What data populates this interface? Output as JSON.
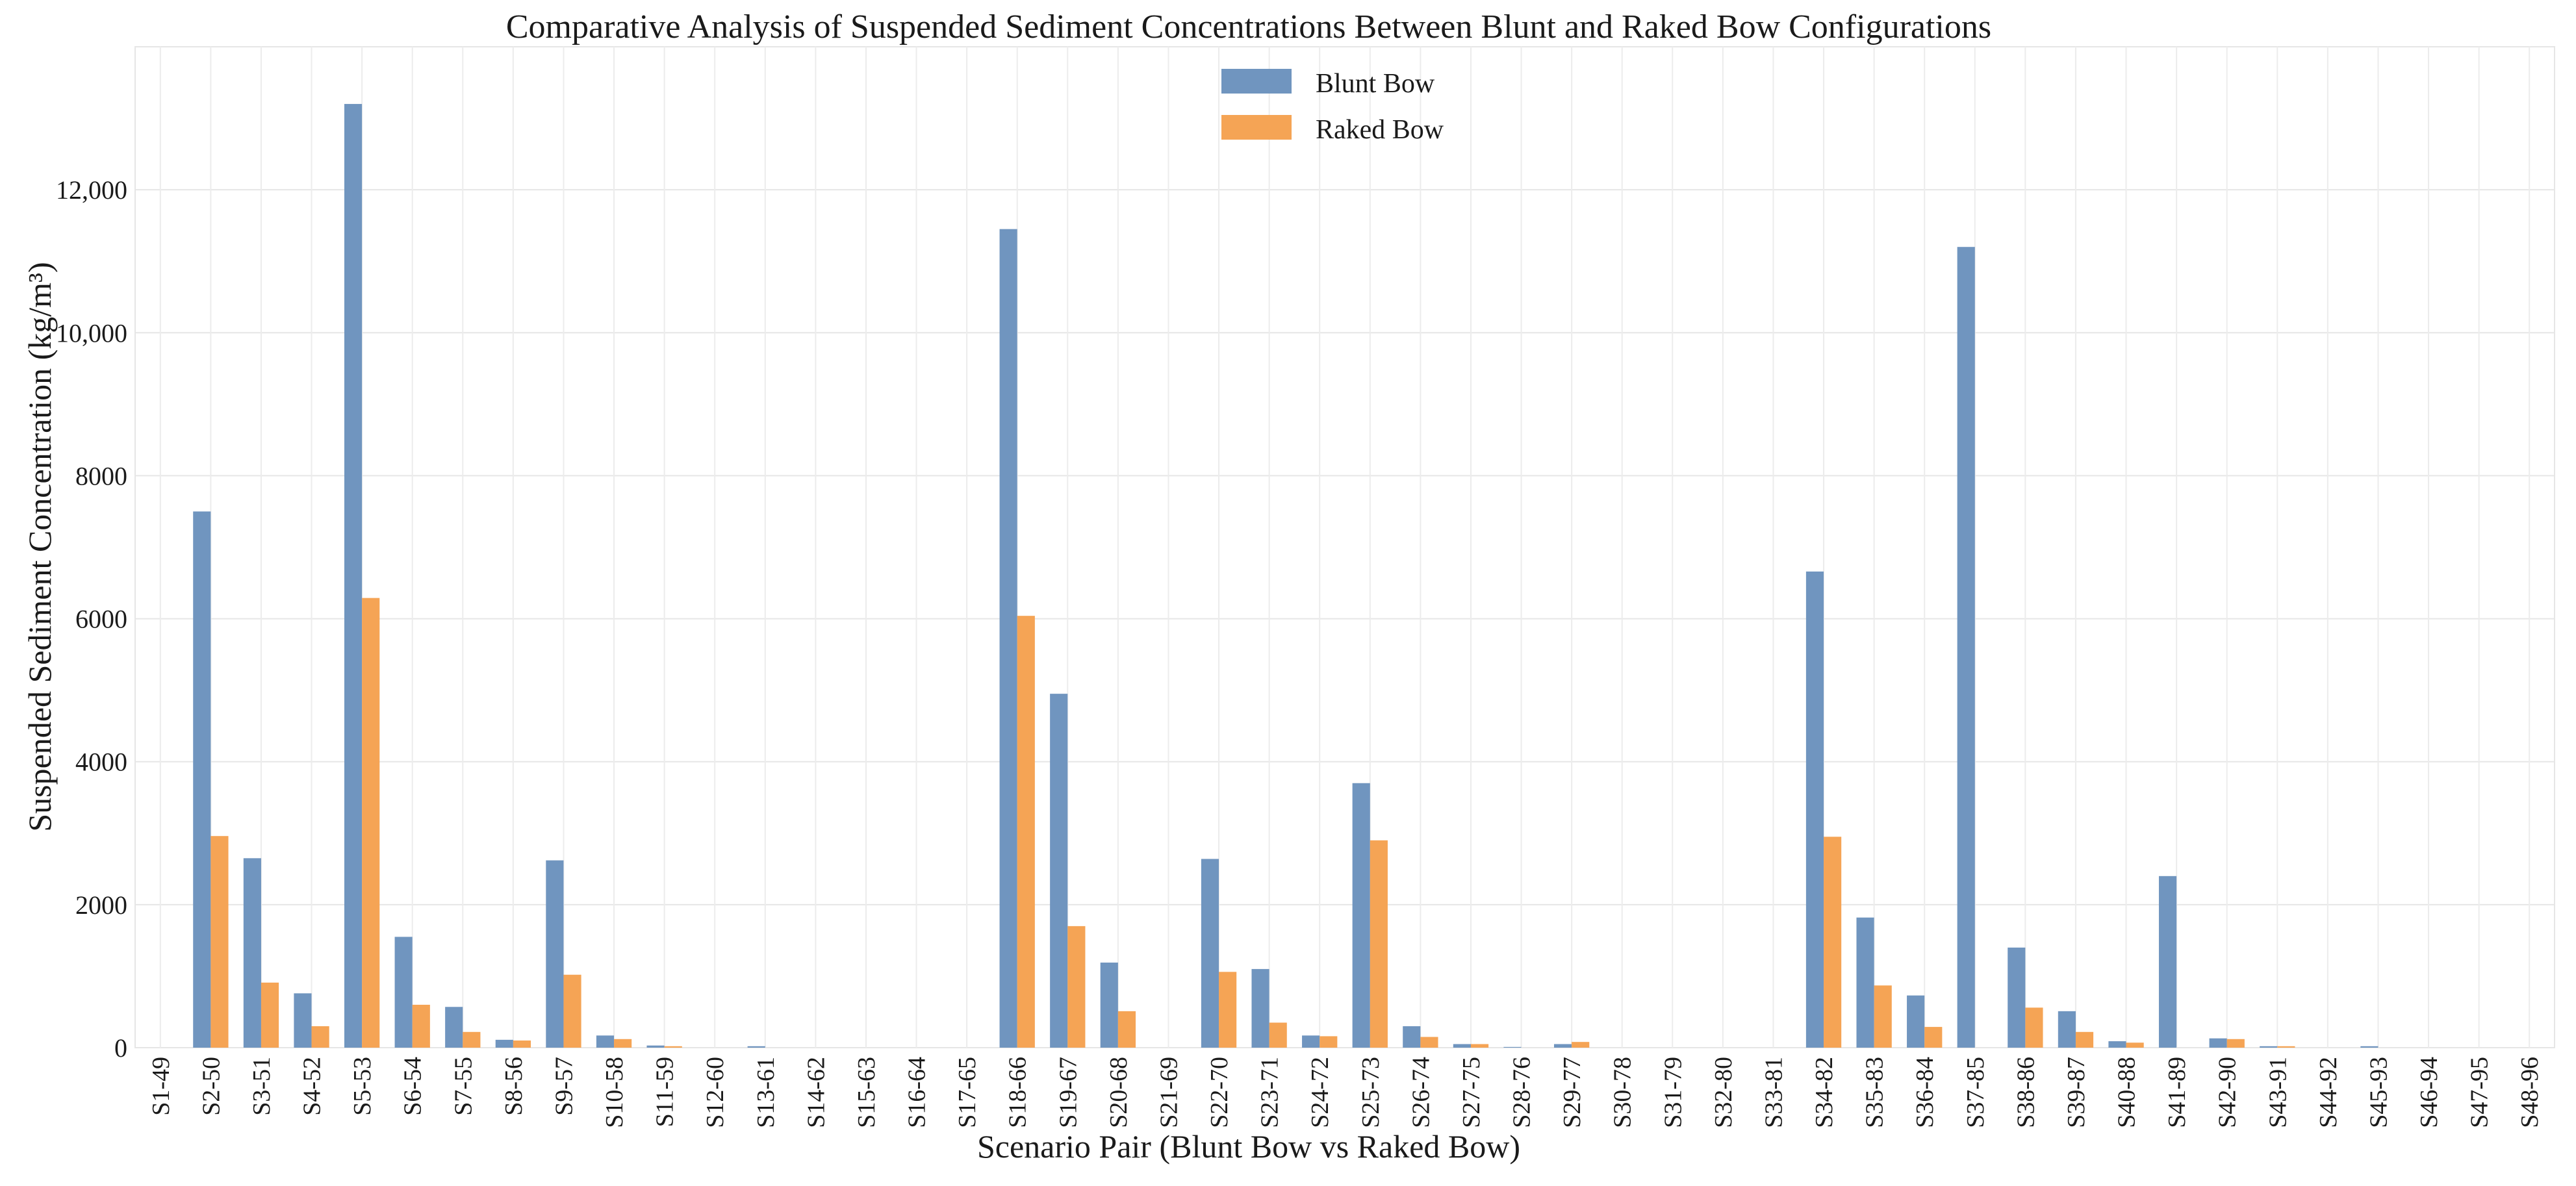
{
  "chart_data": {
    "type": "bar",
    "title": "Comparative Analysis of Suspended Sediment Concentrations Between Blunt and Raked Bow Configurations",
    "xlabel": "Scenario Pair (Blunt Bow vs Raked Bow)",
    "ylabel": "Suspended Sediment Concentration (kg/m³)",
    "ylim": [
      0,
      14000
    ],
    "yticks": [
      0,
      2000,
      4000,
      6000,
      8000,
      10000,
      12000
    ],
    "ytick_labels": [
      "0",
      "2000",
      "4000",
      "6000",
      "8000",
      "10,000",
      "12,000"
    ],
    "grid": true,
    "legend_position": "top-center",
    "categories": [
      "S1-49",
      "S2-50",
      "S3-51",
      "S4-52",
      "S5-53",
      "S6-54",
      "S7-55",
      "S8-56",
      "S9-57",
      "S10-58",
      "S11-59",
      "S12-60",
      "S13-61",
      "S14-62",
      "S15-63",
      "S16-64",
      "S17-65",
      "S18-66",
      "S19-67",
      "S20-68",
      "S21-69",
      "S22-70",
      "S23-71",
      "S24-72",
      "S25-73",
      "S26-74",
      "S27-75",
      "S28-76",
      "S29-77",
      "S30-78",
      "S31-79",
      "S32-80",
      "S33-81",
      "S34-82",
      "S35-83",
      "S36-84",
      "S37-85",
      "S38-86",
      "S39-87",
      "S40-88",
      "S41-89",
      "S42-90",
      "S43-91",
      "S44-92",
      "S45-93",
      "S46-94",
      "S47-95",
      "S48-96"
    ],
    "series": [
      {
        "name": "Blunt Bow",
        "color": "#7095bf",
        "values": [
          0,
          7500,
          2650,
          760,
          13200,
          1550,
          570,
          110,
          2620,
          170,
          30,
          0,
          20,
          0,
          0,
          0,
          0,
          11450,
          4950,
          1190,
          0,
          2640,
          1100,
          170,
          3700,
          300,
          50,
          10,
          50,
          0,
          0,
          0,
          0,
          6660,
          1820,
          730,
          11200,
          1400,
          510,
          90,
          2400,
          130,
          20,
          0,
          20,
          0,
          0,
          0
        ]
      },
      {
        "name": "Raked Bow",
        "color": "#f5a455",
        "values": [
          0,
          2960,
          910,
          300,
          6290,
          600,
          220,
          100,
          1020,
          120,
          20,
          0,
          0,
          0,
          0,
          0,
          0,
          6040,
          1700,
          510,
          0,
          1060,
          350,
          160,
          2900,
          150,
          50,
          0,
          80,
          0,
          0,
          0,
          0,
          2950,
          870,
          290,
          0,
          560,
          220,
          70,
          0,
          120,
          20,
          0,
          0,
          0,
          0,
          0
        ]
      }
    ]
  }
}
